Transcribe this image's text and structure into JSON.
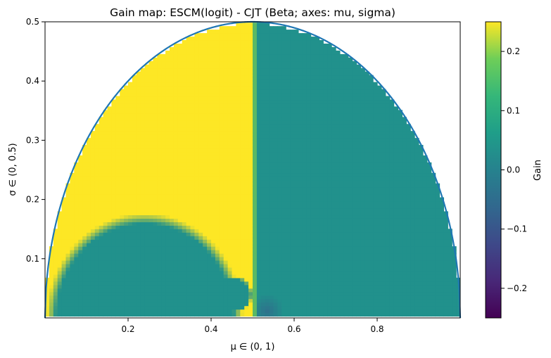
{
  "chart_data": {
    "type": "heatmap",
    "title": "Gain map: ESCM(logit) - CJT (Beta; axes: mu, sigma)",
    "xlabel": "μ ∈ (0, 1)",
    "ylabel": "σ ∈ (0, 0.5)",
    "xlim": [
      0.0,
      1.0
    ],
    "ylim": [
      0.0,
      0.5
    ],
    "x_ticks": [
      0.2,
      0.4,
      0.6,
      0.8
    ],
    "x_tick_labels": [
      "0.2",
      "0.4",
      "0.6",
      "0.8"
    ],
    "y_ticks": [
      0.1,
      0.2,
      0.3,
      0.4,
      0.5
    ],
    "y_tick_labels": [
      "0.1",
      "0.2",
      "0.3",
      "0.4",
      "0.5"
    ],
    "feasible_boundary": "sigma = sqrt(mu(1-mu))",
    "regions": [
      {
        "region": "mu < 0.5, outside lower dome",
        "gain": 0.25
      },
      {
        "region": "lower dome centered mu≈0.24, sigma up to ≈0.175",
        "gain": 0.0
      },
      {
        "region": "mu > 0.52",
        "gain": 0.0
      }
    ],
    "colorbar": {
      "label": "Gain",
      "colormap": "viridis",
      "vmin": -0.25,
      "vmax": 0.25,
      "ticks": [
        -0.2,
        -0.1,
        0.0,
        0.1,
        0.2
      ],
      "tick_labels": [
        "−0.2",
        "−0.1",
        "0.0",
        "0.1",
        "0.2"
      ]
    },
    "colors": {
      "high": "#fde725",
      "zero": "#21918c",
      "boundary": "#1f77b4"
    }
  }
}
